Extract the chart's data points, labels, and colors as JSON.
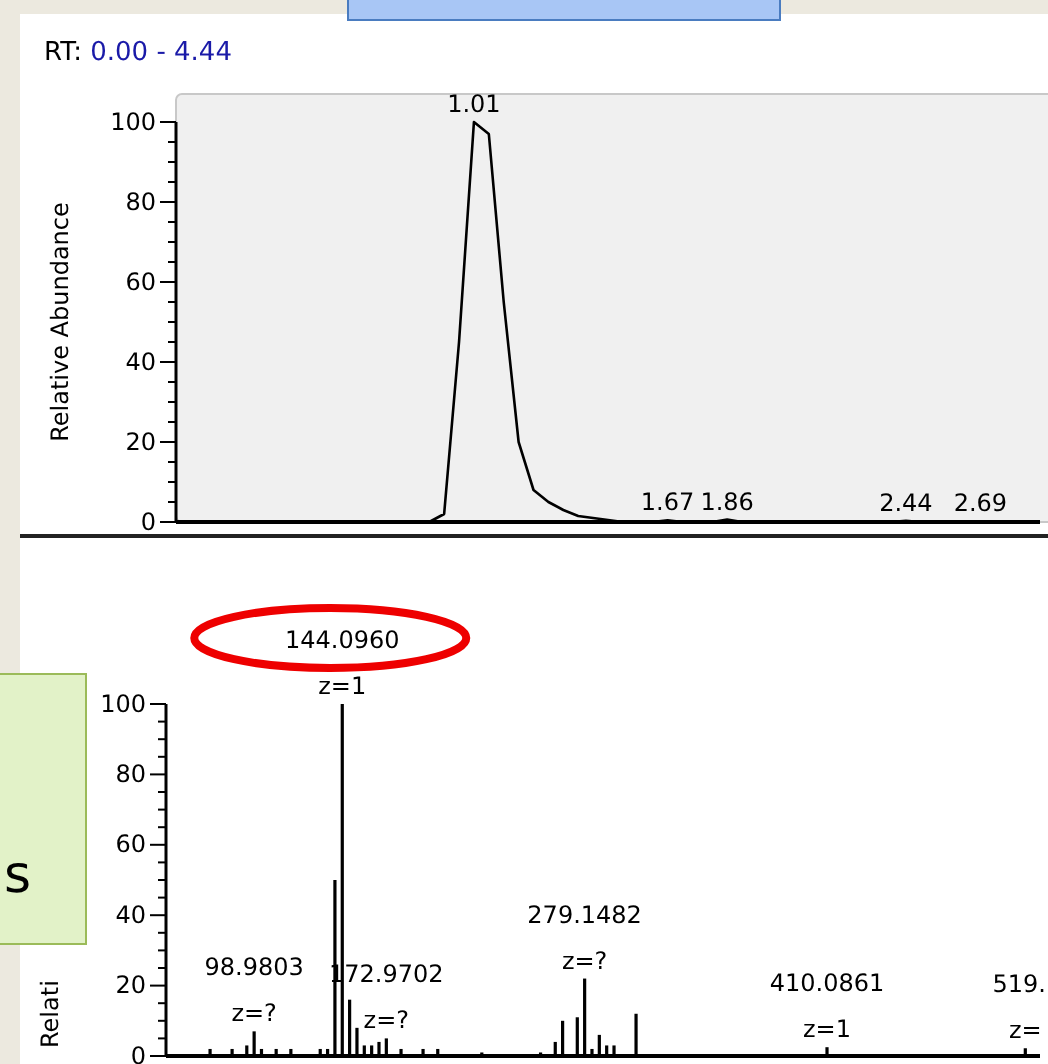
{
  "chart_data": [
    {
      "type": "line",
      "title": "RT: 0.00 - 4.44",
      "ylabel": "Relative Abundance",
      "ylim": [
        0,
        100
      ],
      "yticks": [
        0,
        {
          "value": 5,
          "label": null
        },
        {
          "value": 10,
          "label": null
        },
        {
          "value": 15,
          "label": null
        },
        20,
        {
          "value": 25,
          "label": null
        },
        {
          "value": 30,
          "label": null
        },
        {
          "value": 35,
          "label": null
        },
        40,
        {
          "value": 45,
          "label": null
        },
        {
          "value": 50,
          "label": null
        },
        {
          "value": 55,
          "label": null
        },
        60,
        {
          "value": 65,
          "label": null
        },
        {
          "value": 70,
          "label": null
        },
        {
          "value": 75,
          "label": null
        },
        80,
        {
          "value": 85,
          "label": null
        },
        {
          "value": 90,
          "label": null
        },
        {
          "value": 95,
          "label": null
        },
        100
      ],
      "tick_labels": "y",
      "line_style": "solid",
      "categories": [
        null,
        null,
        null,
        null,
        null,
        null,
        null,
        null,
        null,
        null,
        null,
        null,
        null,
        null,
        null,
        null,
        null,
        null,
        null,
        null,
        null,
        null,
        null,
        null,
        null,
        null,
        null,
        null,
        null,
        null,
        null,
        null,
        null,
        null,
        null,
        null,
        null,
        null,
        null,
        null,
        null,
        null,
        null,
        null,
        null,
        null,
        null,
        null,
        null,
        null,
        null,
        null,
        null,
        null,
        null,
        null,
        null,
        null,
        null
      ],
      "series": [
        {
          "color": "#000000",
          "values": [
            0,
            0,
            0,
            0,
            0,
            0,
            0,
            0,
            0,
            0,
            0,
            0,
            0,
            0,
            0,
            0,
            0,
            0,
            2,
            45,
            100,
            97,
            55,
            20,
            8,
            5,
            3,
            1.5,
            1,
            0.5,
            0,
            0,
            0,
            0.4,
            0,
            0,
            0,
            0.6,
            0,
            0,
            0,
            0,
            0,
            0,
            0,
            0,
            0,
            0,
            0,
            0.3,
            0,
            0,
            0,
            0,
            0.2,
            0,
            0,
            0,
            0
          ]
        }
      ],
      "annotations": [
        {
          "text": "1.01",
          "y": 100
        },
        {
          "text": "1.67",
          "y": 0.4
        },
        {
          "text": "1.86",
          "y": 0.6
        },
        {
          "text": "2.44",
          "y": 0.3
        },
        {
          "text": "2.69",
          "y": 0.2
        }
      ]
    },
    {
      "type": "bar",
      "ylabel": "Relati",
      "ylim": [
        0,
        100
      ],
      "yticks": [
        0,
        {
          "value": 5,
          "label": null
        },
        {
          "value": 10,
          "label": null
        },
        {
          "value": 15,
          "label": null
        },
        20,
        {
          "value": 25,
          "label": null
        },
        {
          "value": 30,
          "label": null
        },
        {
          "value": 35,
          "label": null
        },
        40,
        {
          "value": 45,
          "label": null
        },
        {
          "value": 50,
          "label": null
        },
        {
          "value": 55,
          "label": null
        },
        60,
        {
          "value": 65,
          "label": null
        },
        {
          "value": 70,
          "label": null
        },
        {
          "value": 75,
          "label": null
        },
        80,
        {
          "value": 85,
          "label": null
        },
        {
          "value": 90,
          "label": null
        },
        {
          "value": 95,
          "label": null
        },
        100
      ],
      "tick_labels": "y",
      "categories": [
        null,
        null,
        null,
        null,
        null,
        null,
        null,
        null,
        null,
        null,
        null,
        null,
        null,
        null,
        null,
        null,
        null,
        null,
        null,
        null,
        null,
        null,
        null,
        null,
        null,
        null,
        null,
        null,
        null,
        null,
        null,
        null,
        null,
        null,
        null,
        null,
        null,
        null,
        null,
        null,
        null,
        null,
        null,
        null,
        null,
        null,
        null,
        null,
        null,
        null,
        null,
        null,
        null,
        null,
        null,
        null,
        null,
        null,
        null,
        null,
        null,
        null,
        null,
        null,
        null,
        null,
        null,
        null,
        null,
        null,
        null,
        null,
        null,
        null,
        null,
        null,
        null,
        null,
        null,
        null,
        null,
        null,
        null,
        null,
        null,
        null,
        null,
        null,
        null,
        null,
        null,
        null,
        null,
        null,
        null,
        null,
        null,
        null,
        null,
        null,
        null,
        null,
        null,
        null,
        null,
        null,
        null,
        null,
        null,
        null,
        null,
        null,
        null,
        null,
        null,
        null,
        null,
        null,
        null,
        null
      ],
      "series": [
        {
          "color": "#000000",
          "values": [
            0,
            0,
            0,
            0,
            0,
            0,
            2,
            0,
            0,
            2,
            0,
            3,
            7,
            2,
            0,
            2,
            0,
            2,
            0,
            0,
            0,
            2,
            2,
            50,
            100,
            16,
            8,
            3,
            3,
            4,
            5,
            0,
            2,
            0,
            0,
            2,
            0,
            2,
            0,
            0,
            0,
            0,
            0,
            1,
            0,
            0,
            0,
            0,
            0,
            0,
            0,
            1,
            0,
            4,
            10,
            0,
            11,
            22,
            2,
            6,
            3,
            3,
            0,
            0,
            12,
            0,
            0,
            0,
            0,
            0,
            0,
            0,
            0,
            0,
            0,
            0,
            0,
            0,
            0,
            0,
            0,
            0,
            0,
            0,
            0,
            0,
            0,
            0,
            0,
            0,
            2.5,
            0,
            0,
            0,
            0,
            0,
            0,
            0,
            0,
            0,
            0,
            0,
            0,
            0,
            0,
            0,
            0,
            0,
            0,
            0,
            0,
            0,
            0,
            0,
            0,
            0,
            0,
            2.2,
            0,
            0
          ]
        }
      ],
      "annotations": [
        {
          "text": "144.0960",
          "y": 100
        },
        {
          "text": "z=1",
          "y": 100
        },
        {
          "text": "98.9803",
          "y": 7
        },
        {
          "text": "z=?",
          "y": 7
        },
        {
          "text": "172.9702",
          "y": 5
        },
        {
          "text": "z=?",
          "y": 5
        },
        {
          "text": "279.1482",
          "y": 22
        },
        {
          "text": "z=?",
          "y": 22
        },
        {
          "text": "410.0861",
          "y": 2.5
        },
        {
          "text": "z=1",
          "y": 2.5
        },
        {
          "text": "519.",
          "y": 2.2
        },
        {
          "text": "z=",
          "y": 2.2
        },
        "s"
      ]
    }
  ]
}
